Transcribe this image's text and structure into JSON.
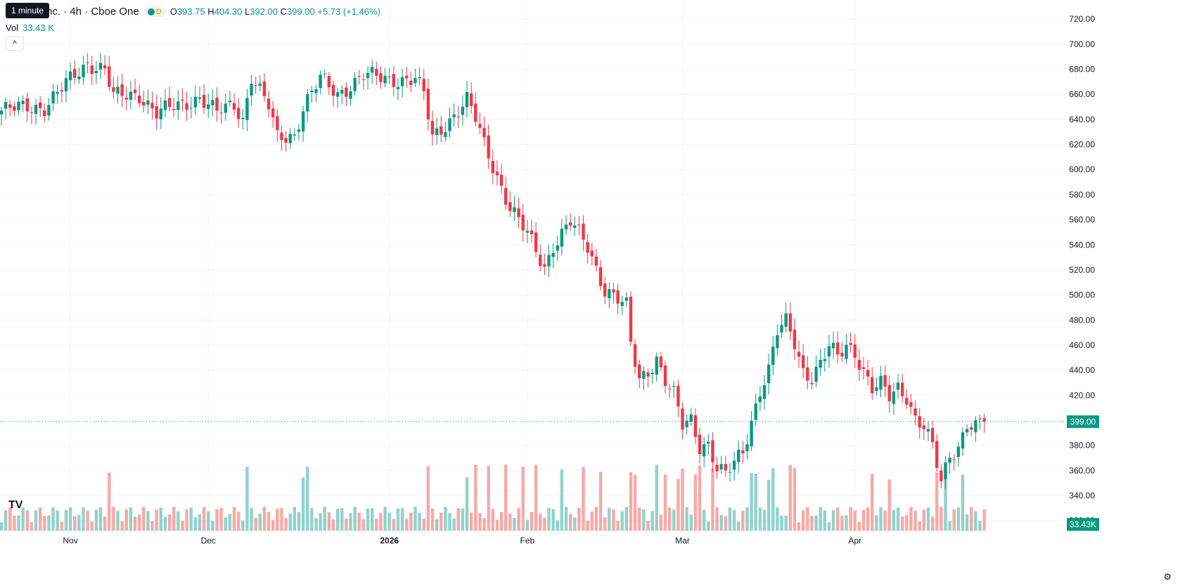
{
  "header": {
    "tooltip": "1 minute",
    "symbol": "nc. · 4h · Cboe One",
    "status_d": "D",
    "ohlc": {
      "o_label": "O",
      "o": "393.75",
      "h_label": "H",
      "h": "404.30",
      "l_label": "L",
      "l": "392.00",
      "c_label": "C",
      "c": "399.00",
      "change": "+5.73 (+1.46%)"
    },
    "vol_label": "Vol",
    "vol_value": "33.43 K",
    "collapse_glyph": "^"
  },
  "colors": {
    "up": "#089981",
    "down": "#f23645",
    "vol_up": "#92d2cc",
    "vol_down": "#f7a9a7",
    "grid": "#f0f3fa",
    "price_tag": "#089981"
  },
  "chart_data": {
    "type": "candlestick",
    "ylim": [
      312,
      724
    ],
    "price_ticks": [
      "720.00",
      "700.00",
      "680.00",
      "660.00",
      "640.00",
      "620.00",
      "600.00",
      "580.00",
      "560.00",
      "540.00",
      "520.00",
      "500.00",
      "480.00",
      "460.00",
      "440.00",
      "420.00",
      "400.00",
      "380.00",
      "360.00",
      "340.00",
      "320.00"
    ],
    "x_labels": [
      "Nov",
      "Dec",
      "2026",
      "Feb",
      "Mar",
      "Apr"
    ],
    "x_label_positions": [
      16,
      48,
      90,
      122,
      158,
      198
    ],
    "last_price": 399.0,
    "last_price_label": "399.00",
    "last_volume_label": "33.43K",
    "anchors": [
      [
        0,
        647
      ],
      [
        6,
        650
      ],
      [
        10,
        650
      ],
      [
        15,
        668
      ],
      [
        20,
        685
      ],
      [
        24,
        680
      ],
      [
        26,
        658
      ],
      [
        32,
        660
      ],
      [
        36,
        645
      ],
      [
        42,
        652
      ],
      [
        46,
        658
      ],
      [
        50,
        645
      ],
      [
        54,
        652
      ],
      [
        56,
        640
      ],
      [
        58,
        675
      ],
      [
        62,
        650
      ],
      [
        64,
        625
      ],
      [
        68,
        628
      ],
      [
        70,
        650
      ],
      [
        74,
        672
      ],
      [
        78,
        660
      ],
      [
        80,
        665
      ],
      [
        84,
        675
      ],
      [
        90,
        672
      ],
      [
        96,
        672
      ],
      [
        98,
        660
      ],
      [
        100,
        625
      ],
      [
        104,
        640
      ],
      [
        108,
        655
      ],
      [
        110,
        640
      ],
      [
        112,
        620
      ],
      [
        118,
        570
      ],
      [
        122,
        548
      ],
      [
        126,
        522
      ],
      [
        128,
        540
      ],
      [
        132,
        558
      ],
      [
        134,
        548
      ],
      [
        136,
        538
      ],
      [
        140,
        505
      ],
      [
        142,
        500
      ],
      [
        145,
        490
      ],
      [
        146,
        460
      ],
      [
        148,
        432
      ],
      [
        150,
        440
      ],
      [
        152,
        450
      ],
      [
        154,
        432
      ],
      [
        156,
        420
      ],
      [
        158,
        395
      ],
      [
        160,
        400
      ],
      [
        162,
        380
      ],
      [
        164,
        382
      ],
      [
        166,
        362
      ],
      [
        168,
        356
      ],
      [
        172,
        375
      ],
      [
        174,
        400
      ],
      [
        176,
        425
      ],
      [
        178,
        440
      ],
      [
        180,
        470
      ],
      [
        182,
        478
      ],
      [
        184,
        462
      ],
      [
        186,
        440
      ],
      [
        188,
        435
      ],
      [
        190,
        445
      ],
      [
        192,
        458
      ],
      [
        194,
        450
      ],
      [
        196,
        460
      ],
      [
        198,
        455
      ],
      [
        200,
        440
      ],
      [
        202,
        425
      ],
      [
        204,
        428
      ],
      [
        206,
        418
      ],
      [
        208,
        426
      ],
      [
        210,
        420
      ],
      [
        212,
        402
      ],
      [
        214,
        395
      ],
      [
        216,
        378
      ],
      [
        218,
        350
      ],
      [
        220,
        372
      ],
      [
        222,
        380
      ],
      [
        224,
        398
      ],
      [
        226,
        395
      ],
      [
        228,
        398
      ]
    ]
  },
  "footer": {
    "logo_text": "TV",
    "gear_glyph": "⚙"
  }
}
